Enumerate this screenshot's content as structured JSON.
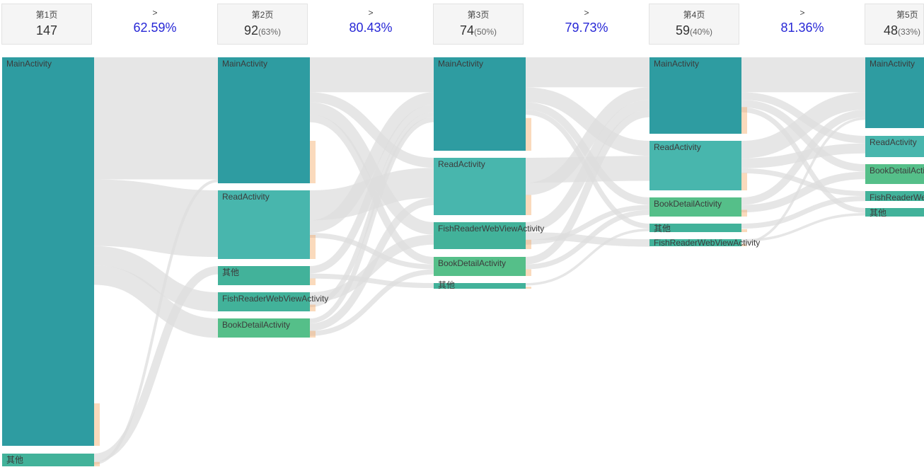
{
  "headers": [
    {
      "title": "第1页",
      "count": "147",
      "pct": ""
    },
    {
      "title": "第2页",
      "count": "92",
      "pct": "(63%)"
    },
    {
      "title": "第3页",
      "count": "74",
      "pct": "(50%)"
    },
    {
      "title": "第4页",
      "count": "59",
      "pct": "(40%)"
    },
    {
      "title": "第5页",
      "count": "48",
      "pct": "(33%)"
    }
  ],
  "rates": [
    {
      "arrow": ">",
      "value": "62.59%"
    },
    {
      "arrow": ">",
      "value": "80.43%"
    },
    {
      "arrow": ">",
      "value": "79.73%"
    },
    {
      "arrow": ">",
      "value": "81.36%"
    }
  ],
  "colors": {
    "teal_dark": "#2e9ca1",
    "teal_light": "#48b6ad",
    "teal_mid": "#42b29a",
    "green": "#55bf89",
    "flow": "#dedede",
    "rate_blue": "#2727d6",
    "dropoff": "#f4a259"
  },
  "columns": [
    {
      "nodes": [
        {
          "label": "MainActivity",
          "value": 140,
          "color": "#2e9ca1"
        },
        {
          "label": "其他",
          "value": 7,
          "color": "#42b29a"
        }
      ]
    },
    {
      "nodes": [
        {
          "label": "MainActivity",
          "value": 44,
          "color": "#2e9ca1"
        },
        {
          "label": "ReadActivity",
          "value": 24,
          "color": "#48b6ad"
        },
        {
          "label": "其他",
          "value": 7,
          "color": "#42b29a"
        },
        {
          "label": "FishReaderWebViewActivity",
          "value": 7,
          "color": "#42b29a"
        },
        {
          "label": "BookDetailActivity",
          "value": 7,
          "color": "#55bf89"
        }
      ]
    },
    {
      "nodes": [
        {
          "label": "MainActivity",
          "value": 33,
          "color": "#2e9ca1"
        },
        {
          "label": "ReadActivity",
          "value": 20,
          "color": "#48b6ad"
        },
        {
          "label": "FishReaderWebViewActivity",
          "value": 10,
          "color": "#42b29a"
        },
        {
          "label": "BookDetailActivity",
          "value": 7,
          "color": "#55bf89"
        },
        {
          "label": "其他",
          "value": 2,
          "color": "#42b29a"
        }
      ]
    },
    {
      "nodes": [
        {
          "label": "MainActivity",
          "value": 27,
          "color": "#2e9ca1"
        },
        {
          "label": "ReadActivity",
          "value": 18,
          "color": "#48b6ad"
        },
        {
          "label": "BookDetailActivity",
          "value": 7,
          "color": "#55bf89"
        },
        {
          "label": "其他",
          "value": 3,
          "color": "#42b29a"
        },
        {
          "label": "FishReaderWebViewActivity",
          "value": 3,
          "color": "#42b29a"
        }
      ]
    },
    {
      "nodes": [
        {
          "label": "MainActivity",
          "value": 25,
          "color": "#2e9ca1"
        },
        {
          "label": "ReadActivity",
          "value": 8,
          "color": "#48b6ad"
        },
        {
          "label": "BookDetailActivity",
          "value": 7,
          "color": "#55bf89"
        },
        {
          "label": "FishReaderWebViewActivity",
          "value": 4,
          "color": "#42b29a"
        },
        {
          "label": "其他",
          "value": 3,
          "color": "#42b29a"
        }
      ]
    }
  ],
  "flows": [
    {
      "from": [
        0,
        0
      ],
      "to": [
        1,
        0
      ],
      "value": 44
    },
    {
      "from": [
        0,
        0
      ],
      "to": [
        1,
        1
      ],
      "value": 24
    },
    {
      "from": [
        0,
        0
      ],
      "to": [
        1,
        3
      ],
      "value": 7
    },
    {
      "from": [
        0,
        0
      ],
      "to": [
        1,
        4
      ],
      "value": 7
    },
    {
      "from": [
        0,
        1
      ],
      "to": [
        1,
        2
      ],
      "value": 3
    },
    {
      "from": [
        0,
        1
      ],
      "to": [
        1,
        0
      ],
      "value": 1
    },
    {
      "from": [
        1,
        0
      ],
      "to": [
        2,
        0
      ],
      "value": 14
    },
    {
      "from": [
        1,
        0
      ],
      "to": [
        2,
        1
      ],
      "value": 4
    },
    {
      "from": [
        1,
        0
      ],
      "to": [
        2,
        2
      ],
      "value": 5
    },
    {
      "from": [
        1,
        0
      ],
      "to": [
        2,
        3
      ],
      "value": 3
    },
    {
      "from": [
        1,
        1
      ],
      "to": [
        2,
        1
      ],
      "value": 12
    },
    {
      "from": [
        1,
        1
      ],
      "to": [
        2,
        0
      ],
      "value": 5
    },
    {
      "from": [
        1,
        1
      ],
      "to": [
        2,
        3
      ],
      "value": 2
    },
    {
      "from": [
        1,
        2
      ],
      "to": [
        2,
        0
      ],
      "value": 3
    },
    {
      "from": [
        1,
        2
      ],
      "to": [
        2,
        4
      ],
      "value": 2
    },
    {
      "from": [
        1,
        3
      ],
      "to": [
        2,
        2
      ],
      "value": 4
    },
    {
      "from": [
        1,
        3
      ],
      "to": [
        2,
        0
      ],
      "value": 2
    },
    {
      "from": [
        1,
        4
      ],
      "to": [
        2,
        0
      ],
      "value": 2
    },
    {
      "from": [
        1,
        4
      ],
      "to": [
        2,
        1
      ],
      "value": 3
    },
    {
      "from": [
        1,
        4
      ],
      "to": [
        2,
        3
      ],
      "value": 2
    },
    {
      "from": [
        2,
        0
      ],
      "to": [
        3,
        0
      ],
      "value": 12
    },
    {
      "from": [
        2,
        0
      ],
      "to": [
        3,
        1
      ],
      "value": 6
    },
    {
      "from": [
        2,
        0
      ],
      "to": [
        3,
        2
      ],
      "value": 3
    },
    {
      "from": [
        2,
        0
      ],
      "to": [
        3,
        3
      ],
      "value": 2
    },
    {
      "from": [
        2,
        1
      ],
      "to": [
        3,
        1
      ],
      "value": 10
    },
    {
      "from": [
        2,
        1
      ],
      "to": [
        3,
        0
      ],
      "value": 5
    },
    {
      "from": [
        2,
        2
      ],
      "to": [
        3,
        0
      ],
      "value": 4
    },
    {
      "from": [
        2,
        2
      ],
      "to": [
        3,
        4
      ],
      "value": 3
    },
    {
      "from": [
        2,
        2
      ],
      "to": [
        3,
        2
      ],
      "value": 2
    },
    {
      "from": [
        2,
        3
      ],
      "to": [
        3,
        0
      ],
      "value": 3
    },
    {
      "from": [
        2,
        3
      ],
      "to": [
        3,
        2
      ],
      "value": 2
    },
    {
      "from": [
        2,
        4
      ],
      "to": [
        3,
        3
      ],
      "value": 1
    },
    {
      "from": [
        3,
        0
      ],
      "to": [
        4,
        0
      ],
      "value": 14
    },
    {
      "from": [
        3,
        0
      ],
      "to": [
        4,
        1
      ],
      "value": 3
    },
    {
      "from": [
        3,
        0
      ],
      "to": [
        4,
        2
      ],
      "value": 3
    },
    {
      "from": [
        3,
        0
      ],
      "to": [
        4,
        4
      ],
      "value": 2
    },
    {
      "from": [
        3,
        1
      ],
      "to": [
        4,
        0
      ],
      "value": 7
    },
    {
      "from": [
        3,
        1
      ],
      "to": [
        4,
        1
      ],
      "value": 4
    },
    {
      "from": [
        3,
        1
      ],
      "to": [
        4,
        3
      ],
      "value": 2
    },
    {
      "from": [
        3,
        2
      ],
      "to": [
        4,
        0
      ],
      "value": 3
    },
    {
      "from": [
        3,
        2
      ],
      "to": [
        4,
        2
      ],
      "value": 3
    },
    {
      "from": [
        3,
        3
      ],
      "to": [
        4,
        3
      ],
      "value": 2
    },
    {
      "from": [
        3,
        4
      ],
      "to": [
        4,
        4
      ],
      "value": 1
    },
    {
      "from": [
        3,
        4
      ],
      "to": [
        4,
        0
      ],
      "value": 1
    }
  ]
}
